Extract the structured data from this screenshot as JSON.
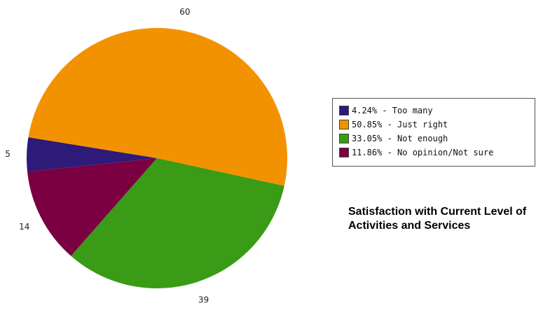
{
  "chart_data": {
    "type": "pie",
    "title": "Satisfaction with Current Level of Activities and Services",
    "slices": [
      {
        "label": "Too many",
        "value": 5,
        "percent": "4.24%",
        "color": "#2e1a78"
      },
      {
        "label": "Just right",
        "value": 60,
        "percent": "50.85%",
        "color": "#f39200"
      },
      {
        "label": "Not enough",
        "value": 39,
        "percent": "33.05%",
        "color": "#3a9b16"
      },
      {
        "label": "No opinion/Not sure",
        "value": 14,
        "percent": "11.86%",
        "color": "#7a0042"
      }
    ],
    "legend": {
      "placement": "right",
      "entries": [
        "4.24% - Too many",
        "50.85% - Just right",
        "33.05% - Not enough",
        "11.86% - No opinion/Not sure"
      ]
    }
  }
}
